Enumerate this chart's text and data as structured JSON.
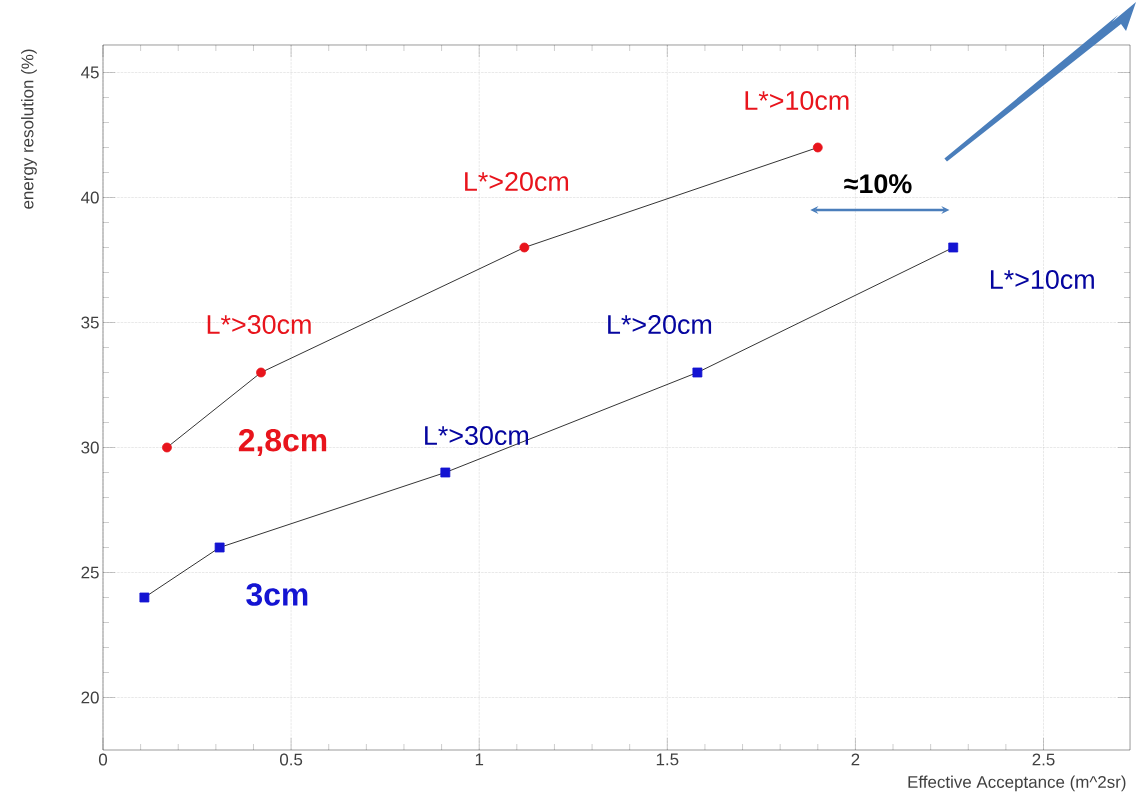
{
  "chart_data": {
    "type": "line",
    "xlabel": "Effective Acceptance (m^2sr)",
    "ylabel": "energy resolution (%)",
    "xlim": [
      0,
      2.73
    ],
    "ylim": [
      17.9,
      46.1
    ],
    "xticks": [
      0,
      0.5,
      1,
      1.5,
      2,
      2.5
    ],
    "yticks": [
      20,
      25,
      30,
      35,
      40,
      45
    ],
    "grid": true,
    "series": [
      {
        "name": "2,8cm",
        "color": "#e8141c",
        "marker": "circle",
        "x": [
          0.17,
          0.42,
          1.12,
          1.9
        ],
        "values": [
          30,
          33,
          38,
          42
        ]
      },
      {
        "name": "3cm",
        "color": "#1414d2",
        "marker": "square",
        "x": [
          0.11,
          0.31,
          0.91,
          1.58,
          2.26
        ],
        "values": [
          24,
          26,
          29,
          33,
          38
        ]
      }
    ],
    "annotations": [
      {
        "text": "L*>10cm",
        "x": 1.9,
        "y": 42
      },
      {
        "text": "L*>20cm",
        "x": 1.12,
        "y": 38
      },
      {
        "text": "L*>30cm",
        "x": 0.42,
        "y": 33
      },
      {
        "text": "L*>30cm",
        "x": 0.91,
        "y": 29
      },
      {
        "text": "L*>20cm",
        "x": 1.58,
        "y": 33
      },
      {
        "text": "L*>10cm",
        "x": 2.26,
        "y": 38
      },
      "≈10%"
    ]
  }
}
